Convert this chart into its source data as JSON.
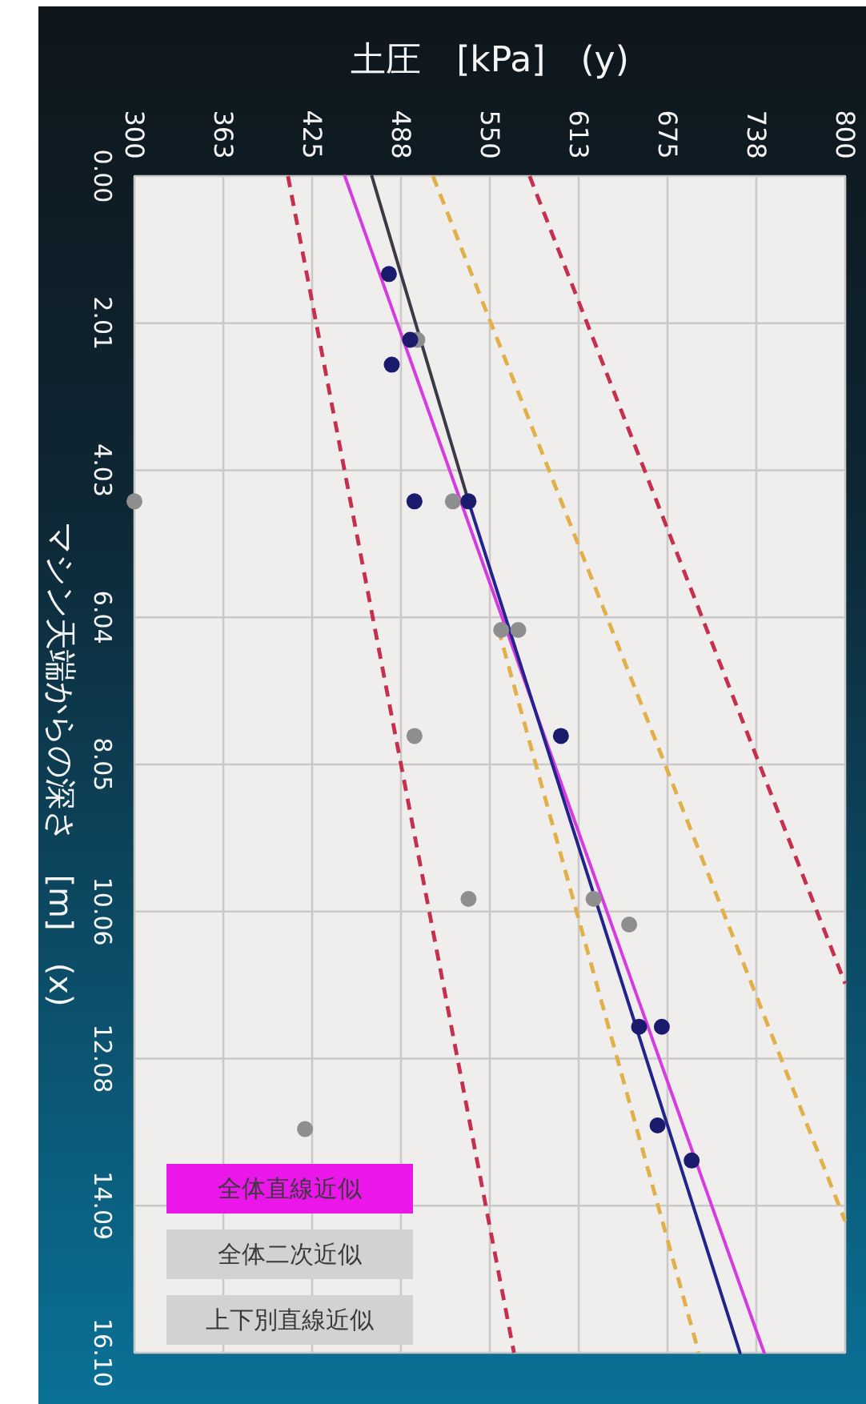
{
  "chart_data": {
    "type": "scatter",
    "xlabel": "土圧　[kPa]　(y)",
    "ylabel": "マシン天端からの深さ　[m]　(x)",
    "xlim": [
      300,
      800
    ],
    "ylim": [
      16.1,
      0
    ],
    "xticks": [
      300,
      {
        "value": 362.5,
        "label": "363"
      },
      425,
      {
        "value": 487.5,
        "label": "488"
      },
      550,
      {
        "value": 612.5,
        "label": "613"
      },
      675,
      {
        "value": 737.5,
        "label": "738"
      },
      800
    ],
    "yticks": [
      {
        "value": 0,
        "label": "0.00"
      },
      {
        "value": 2.0125,
        "label": "2.01"
      },
      {
        "value": 4.025,
        "label": "4.03"
      },
      {
        "value": 6.0375,
        "label": "6.04"
      },
      8.05,
      {
        "value": 10.0625,
        "label": "10.06"
      },
      {
        "value": 12.075,
        "label": "12.08"
      },
      {
        "value": 14.0875,
        "label": "14.09"
      },
      {
        "value": 16.1,
        "label": "16.10"
      }
    ],
    "grid": true,
    "marker": "circle",
    "series": [
      {
        "type": "line",
        "marker": "none",
        "line_style": "dashed",
        "color": "#c4304e",
        "x": [
          408,
          567
        ],
        "values": [
          0,
          16.1
        ]
      },
      {
        "type": "line",
        "marker": "none",
        "line_style": "dashed",
        "color": "#c4304e",
        "x": [
          578,
          800
        ],
        "values": [
          0,
          11.05
        ]
      },
      {
        "type": "line",
        "marker": "none",
        "line_style": "dashed",
        "color": "#e2b04a",
        "x": [
          510,
          800
        ],
        "values": [
          0,
          14.3
        ]
      },
      {
        "type": "line",
        "marker": "none",
        "line_style": "dashed",
        "color": "#e2b04a",
        "x": [
          556,
          697
        ],
        "values": [
          6.2,
          16.1
        ]
      },
      {
        "type": "line",
        "marker": "none",
        "line_style": "solid",
        "color": "#d63be0",
        "x": [
          448,
          743
        ],
        "values": [
          0,
          16.1
        ]
      },
      {
        "type": "line",
        "marker": "none",
        "line_style": "solid",
        "color": "#3a3a46",
        "x": [
          467,
          535
        ],
        "values": [
          0,
          4.45
        ]
      },
      {
        "type": "line",
        "marker": "none",
        "line_style": "solid",
        "color": "#23238c",
        "x": [
          535,
          726
        ],
        "values": [
          4.45,
          16.1
        ]
      },
      {
        "type": "scatter",
        "color": "#8e8e8e",
        "x": [
          499,
          300,
          524,
          558,
          570,
          497,
          535,
          623,
          648,
          420
        ],
        "values": [
          2.24,
          4.45,
          4.45,
          6.21,
          6.21,
          7.66,
          9.89,
          9.89,
          10.24,
          13.04
        ]
      },
      {
        "type": "scatter",
        "color": "#1b1b6e",
        "x": [
          479,
          494,
          481,
          497,
          535,
          600,
          655,
          671,
          668,
          692
        ],
        "values": [
          1.34,
          2.24,
          2.58,
          4.45,
          4.45,
          7.66,
          11.64,
          11.64,
          12.99,
          13.47
        ]
      }
    ],
    "annotations": [
      "全体直線近似",
      "全体二次近似",
      "上下別直線近似"
    ]
  }
}
